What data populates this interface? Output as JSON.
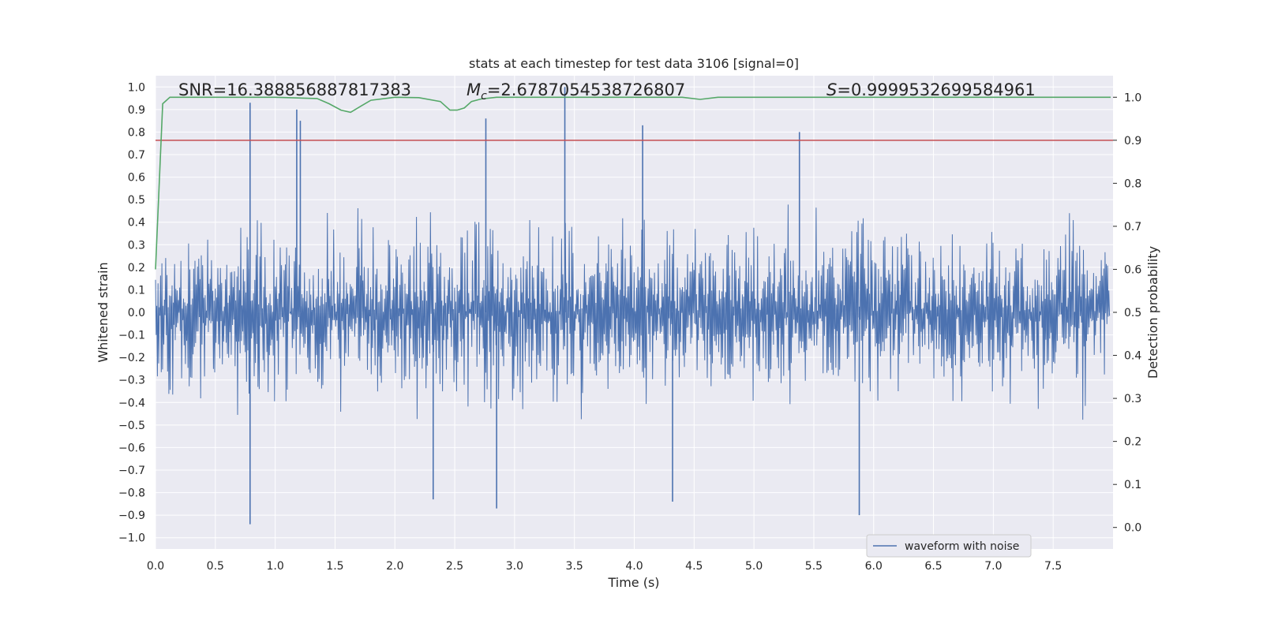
{
  "chart_data": {
    "type": "line",
    "title": "stats at each timestep for test data 3106 [signal=0]",
    "xlabel": "Time (s)",
    "ylabel_left": "Whitened strain",
    "ylabel_right": "Detection probability",
    "xlim": [
      0.0,
      8.0
    ],
    "ylim_left": [
      -1.05,
      1.05
    ],
    "ylim_right": [
      -0.05,
      1.05
    ],
    "x_ticks": [
      "0.0",
      "0.5",
      "1.0",
      "1.5",
      "2.0",
      "2.5",
      "3.0",
      "3.5",
      "4.0",
      "4.5",
      "5.0",
      "5.5",
      "6.0",
      "6.5",
      "7.0",
      "7.5"
    ],
    "y_ticks_left": [
      "1.0",
      "0.9",
      "0.8",
      "0.7",
      "0.6",
      "0.5",
      "0.4",
      "0.3",
      "0.2",
      "0.1",
      "0.0",
      "−0.1",
      "−0.2",
      "−0.3",
      "−0.4",
      "−0.5",
      "−0.6",
      "−0.7",
      "−0.8",
      "−0.9",
      "−1.0"
    ],
    "y_ticks_right": [
      "1.0",
      "0.9",
      "0.8",
      "0.7",
      "0.6",
      "0.5",
      "0.4",
      "0.3",
      "0.2",
      "0.1",
      "0.0"
    ],
    "grid": true,
    "legend": {
      "placement": "lower-right",
      "entries": [
        "waveform with noise"
      ]
    },
    "annotations": {
      "snr": "SNR=16.388856887817383",
      "mc": "=2.6787054538726807",
      "mc_symbol": "M",
      "mc_subscript": "c",
      "s": "=0.9999532699584961",
      "s_symbol": "S"
    },
    "series": [
      {
        "name": "waveform with noise",
        "axis": "left",
        "kind": "noise",
        "color": "#4c72b0",
        "amplitude_envelope": [
          -0.95,
          1.0
        ],
        "peaks": [
          {
            "x": 0.79,
            "y": 0.93
          },
          {
            "x": 1.18,
            "y": 0.9
          },
          {
            "x": 1.21,
            "y": 0.85
          },
          {
            "x": 2.76,
            "y": 0.86
          },
          {
            "x": 3.42,
            "y": 1.0
          },
          {
            "x": 4.07,
            "y": 0.83
          },
          {
            "x": 5.38,
            "y": 0.8
          },
          {
            "x": 0.79,
            "y": -0.94
          },
          {
            "x": 2.85,
            "y": -0.87
          },
          {
            "x": 5.88,
            "y": -0.9
          },
          {
            "x": 4.32,
            "y": -0.84
          },
          {
            "x": 2.32,
            "y": -0.83
          }
        ]
      },
      {
        "name": "",
        "axis": "right",
        "kind": "line",
        "color": "#55a868",
        "x": [
          0.0,
          0.06,
          0.12,
          0.3,
          0.6,
          1.0,
          1.35,
          1.45,
          1.55,
          1.63,
          1.72,
          1.8,
          2.0,
          2.2,
          2.38,
          2.46,
          2.52,
          2.58,
          2.64,
          2.72,
          2.85,
          3.0,
          3.5,
          4.0,
          4.4,
          4.55,
          4.7,
          5.0,
          5.5,
          6.0,
          6.5,
          7.0,
          7.5,
          7.98
        ],
        "y": [
          0.6,
          0.985,
          1.0,
          1.0,
          1.0,
          1.0,
          0.997,
          0.985,
          0.97,
          0.965,
          0.98,
          0.993,
          1.0,
          0.999,
          0.99,
          0.97,
          0.97,
          0.975,
          0.99,
          0.996,
          1.0,
          1.0,
          1.0,
          1.0,
          1.0,
          0.995,
          1.0,
          1.0,
          1.0,
          1.0,
          1.0,
          1.0,
          1.0,
          1.0
        ]
      },
      {
        "name": "",
        "axis": "right",
        "kind": "hline",
        "color": "#c44e52",
        "y": 0.9
      }
    ],
    "colors": {
      "plot_bg": "#eaeaf2",
      "grid": "#ffffff",
      "waveform": "#4c72b0",
      "probability": "#55a868",
      "threshold": "#c44e52"
    }
  }
}
